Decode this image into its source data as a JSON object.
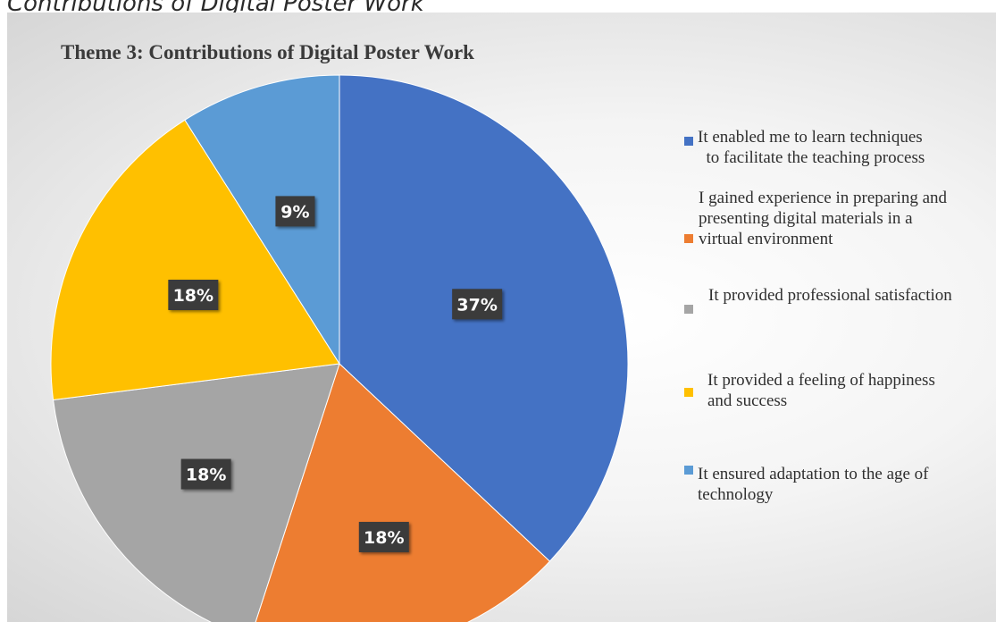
{
  "caption": "Contributions of Digital Poster Work",
  "chart_data": {
    "type": "pie",
    "title": "Theme 3: Contributions of Digital Poster Work",
    "legend_position": "right",
    "slices": [
      {
        "label": "It enabled me to learn techniques to facilitate the teaching process",
        "value": 37,
        "display": "37%",
        "color": "#4472c4"
      },
      {
        "label": "I gained experience in preparing and presenting digital materials in a virtual environment",
        "value": 18,
        "display": "18%",
        "color": "#ed7d31"
      },
      {
        "label": "It provided professional satisfaction",
        "value": 18,
        "display": "18%",
        "color": "#a5a5a5"
      },
      {
        "label": "It provided a feeling of happiness and success",
        "value": 18,
        "display": "18%",
        "color": "#ffc000"
      },
      {
        "label": "It ensured adaptation to the age of technology",
        "value": 9,
        "display": "9%",
        "color": "#5b9bd5"
      }
    ]
  },
  "legend": {
    "items": [
      {
        "lines": [
          "It enabled me to learn techniques",
          "  to facilitate the teaching process"
        ]
      },
      {
        "lines": [
          "I gained experience in preparing and",
          "presenting  digital  materials  in  a",
          "virtual environment"
        ]
      },
      {
        "lines": [
          "It provided professional satisfaction"
        ]
      },
      {
        "lines": [
          "It provided a feeling of happiness",
          "and success"
        ]
      },
      {
        "lines": [
          "It ensured adaptation to the age of",
          "technology"
        ]
      }
    ]
  }
}
